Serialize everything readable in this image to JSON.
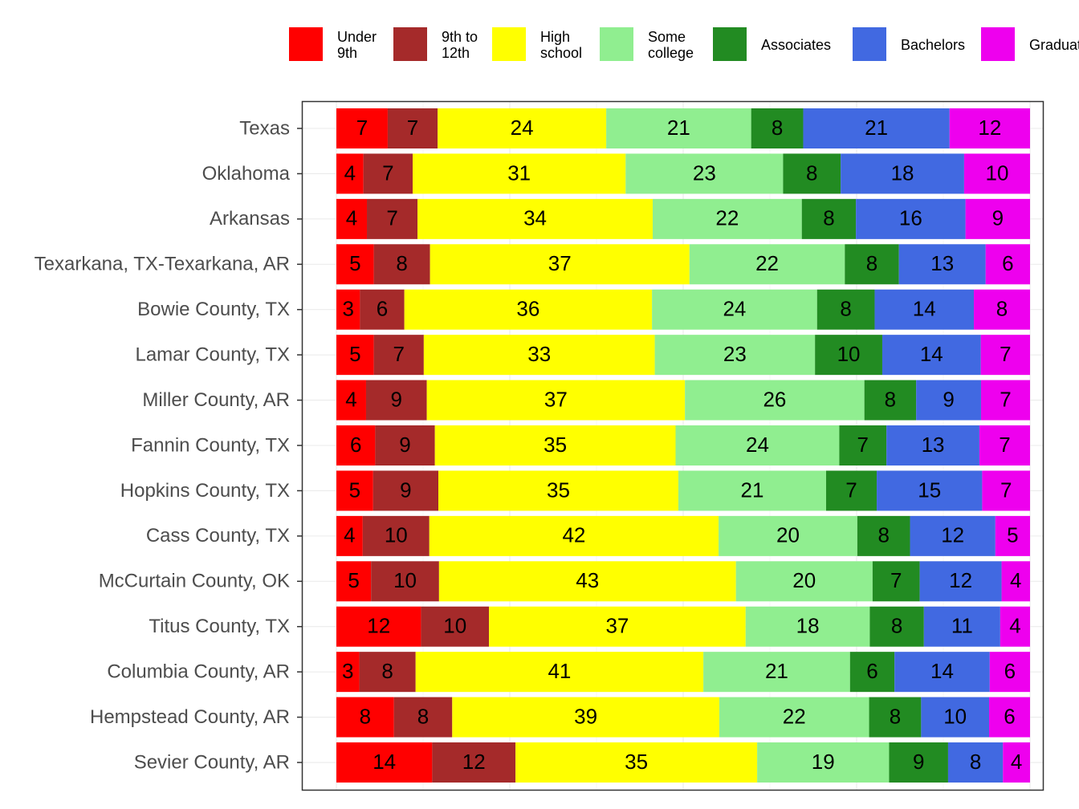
{
  "chart_data": {
    "type": "bar",
    "orientation": "horizontal",
    "stacked": true,
    "title": "",
    "xlabel": "",
    "ylabel": "",
    "xlim": [
      0,
      100
    ],
    "grid": true,
    "legend_position": "top",
    "categories": [
      "Texas",
      "Oklahoma",
      "Arkansas",
      "Texarkana, TX-Texarkana, AR",
      "Bowie County, TX",
      "Lamar County, TX",
      "Miller County, AR",
      "Fannin County, TX",
      "Hopkins County, TX",
      "Cass County, TX",
      "McCurtain County, OK",
      "Titus County, TX",
      "Columbia County, AR",
      "Hempstead County, AR",
      "Sevier County, AR"
    ],
    "series": [
      {
        "name": "Under 9th",
        "legend_lines": [
          "Under",
          "9th"
        ],
        "color": "#ff0000",
        "values": [
          7.4,
          3.9,
          4.4,
          5.4,
          3.4,
          5.4,
          4.3,
          5.6,
          5.3,
          3.8,
          5.0,
          12.2,
          3.3,
          8.3,
          13.8
        ]
      },
      {
        "name": "9th to 12th",
        "legend_lines": [
          "9th to",
          "12th"
        ],
        "color": "#a52a2a",
        "values": [
          7.2,
          7.1,
          7.3,
          8.1,
          6.4,
          7.2,
          8.8,
          8.6,
          9.4,
          9.6,
          9.8,
          9.8,
          8.1,
          8.4,
          12.0
        ]
      },
      {
        "name": "High school",
        "legend_lines": [
          "High",
          "school"
        ],
        "color": "#ffff00",
        "values": [
          24.3,
          30.7,
          33.9,
          37.4,
          35.7,
          33.3,
          37.4,
          34.7,
          34.6,
          41.7,
          42.8,
          37.0,
          41.4,
          38.5,
          34.8
        ]
      },
      {
        "name": "Some college",
        "legend_lines": [
          "Some",
          "college"
        ],
        "color": "#90ee90",
        "values": [
          20.9,
          22.7,
          21.5,
          22.4,
          23.8,
          23.1,
          26.0,
          23.6,
          21.3,
          20.0,
          19.7,
          17.9,
          21.1,
          21.6,
          19.0
        ]
      },
      {
        "name": "Associates",
        "legend_lines": [
          "Associates"
        ],
        "color": "#228b22",
        "values": [
          7.5,
          8.3,
          7.8,
          7.8,
          8.3,
          9.7,
          7.5,
          6.8,
          7.3,
          7.6,
          6.8,
          7.8,
          6.4,
          7.5,
          8.5
        ]
      },
      {
        "name": "Bachelors",
        "legend_lines": [
          "Bachelors"
        ],
        "color": "#4169e1",
        "values": [
          21.1,
          17.8,
          15.8,
          12.5,
          14.3,
          14.2,
          9.4,
          13.4,
          15.2,
          12.3,
          11.8,
          11.0,
          13.7,
          9.8,
          7.9
        ]
      },
      {
        "name": "Graduate",
        "legend_lines": [
          "Graduate"
        ],
        "color": "#ee00ee",
        "values": [
          11.6,
          9.5,
          9.3,
          6.4,
          8.1,
          7.1,
          7.1,
          7.3,
          6.9,
          5.0,
          4.1,
          4.3,
          5.8,
          5.9,
          3.9
        ]
      }
    ]
  }
}
